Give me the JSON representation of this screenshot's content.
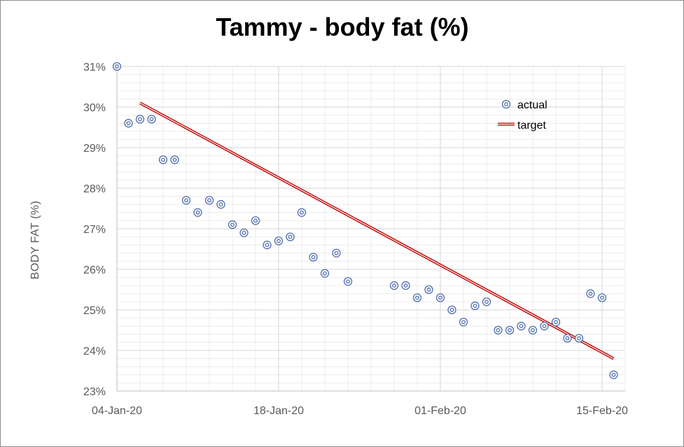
{
  "chart_data": {
    "type": "scatter",
    "title": "Tammy - body fat (%)",
    "xlabel": "",
    "ylabel": "BODY FAT (%)",
    "ylim": [
      23,
      31
    ],
    "yticks": [
      23,
      24,
      25,
      26,
      27,
      28,
      29,
      30,
      31
    ],
    "ytick_labels": [
      "23%",
      "24%",
      "25%",
      "26%",
      "27%",
      "28%",
      "29%",
      "30%",
      "31%"
    ],
    "xlim_day": [
      0,
      44
    ],
    "xticks_day": [
      0,
      14,
      28,
      42
    ],
    "xtick_labels": [
      "04-Jan-20",
      "18-Jan-20",
      "01-Feb-20",
      "15-Feb-20"
    ],
    "minor_x_step_days": 2,
    "minor_y_step": 0.2,
    "grid": true,
    "legend_position": "top-right",
    "series": [
      {
        "name": "actual",
        "kind": "markers",
        "color": "#4f6fad",
        "x_day": [
          0,
          1,
          2,
          3,
          4,
          5,
          6,
          7,
          8,
          9,
          10,
          11,
          12,
          13,
          14,
          15,
          16,
          17,
          18,
          19,
          20,
          24,
          25,
          26,
          27,
          28,
          29,
          30,
          31,
          32,
          33,
          34,
          35,
          36,
          37,
          38,
          39,
          40,
          41,
          42,
          43
        ],
        "y": [
          31.0,
          29.6,
          29.7,
          29.7,
          28.7,
          28.7,
          27.7,
          27.4,
          27.7,
          27.6,
          27.1,
          26.9,
          27.2,
          26.6,
          26.7,
          26.8,
          27.4,
          26.3,
          25.9,
          26.4,
          25.7,
          25.6,
          25.6,
          25.3,
          25.5,
          25.3,
          25.0,
          24.7,
          25.1,
          25.2,
          24.5,
          24.5,
          24.6,
          24.5,
          24.6,
          24.7,
          24.3,
          24.3,
          25.4,
          25.3,
          23.4
        ]
      },
      {
        "name": "target",
        "kind": "line",
        "color": "#c00000",
        "x_day": [
          2,
          43
        ],
        "y": [
          30.1,
          23.8
        ]
      }
    ]
  }
}
